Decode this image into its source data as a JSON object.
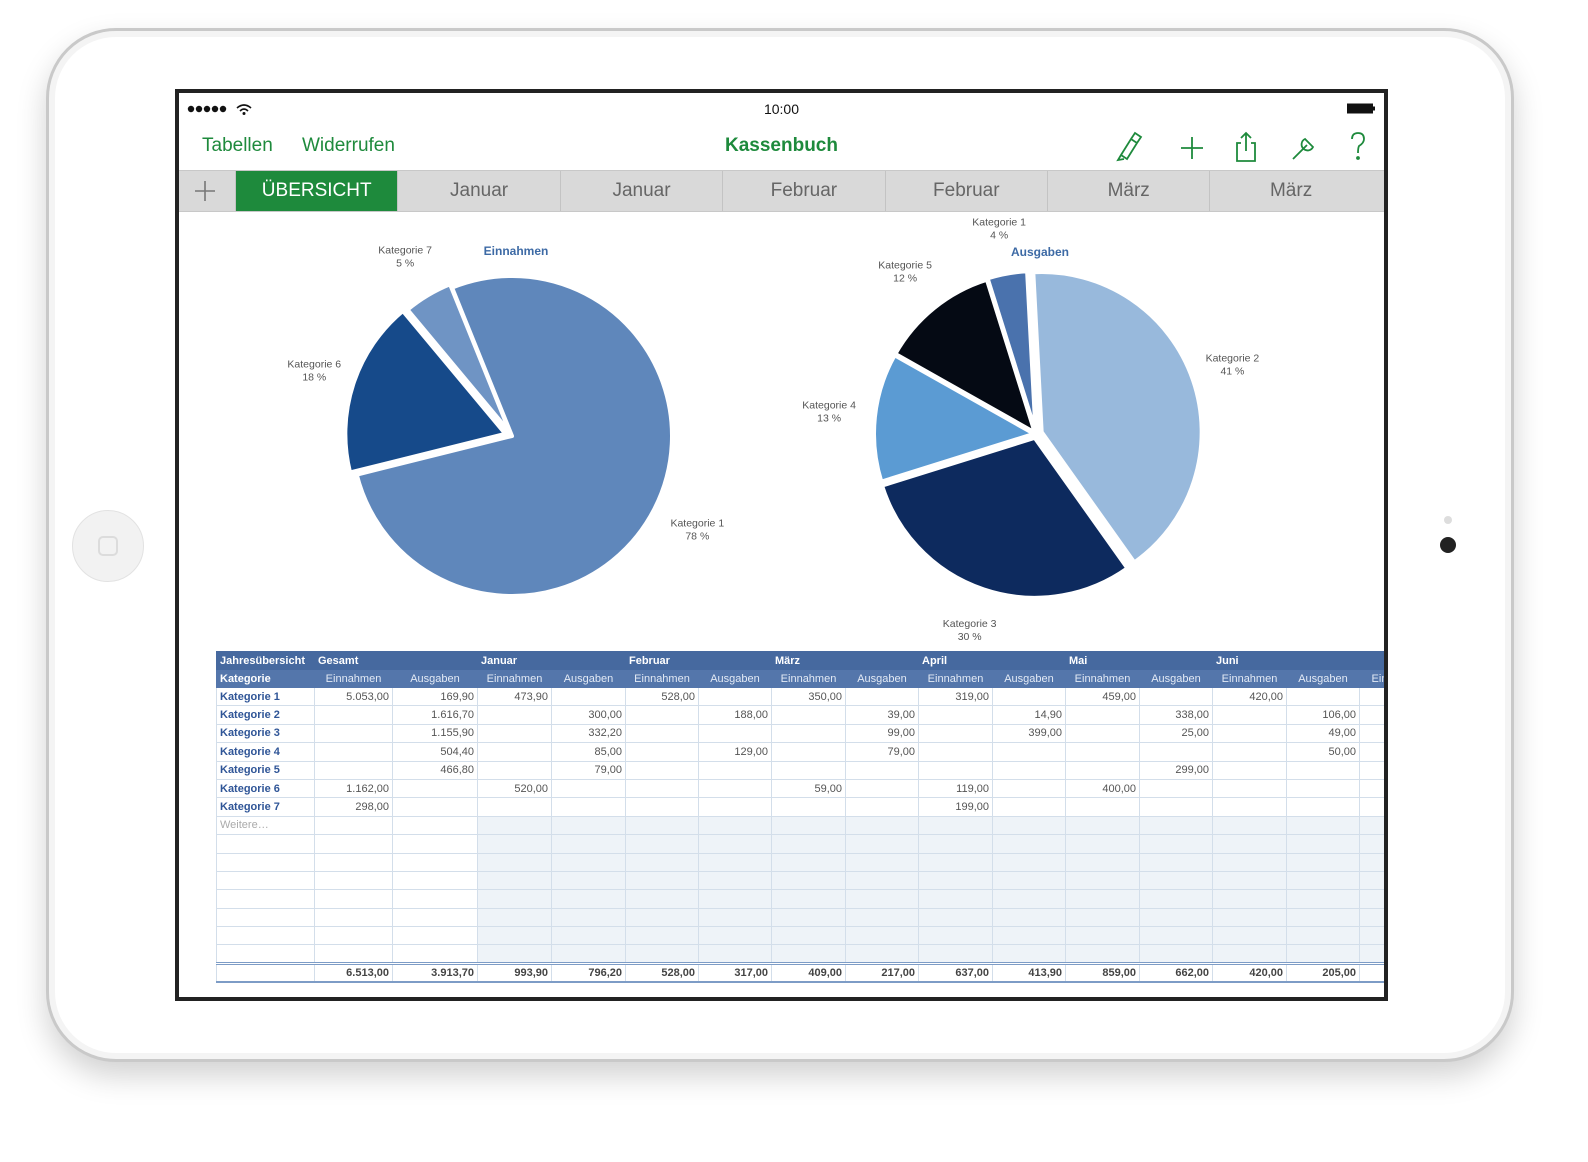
{
  "status_bar": {
    "time": "10:00"
  },
  "toolbar": {
    "left": [
      "Tabellen",
      "Widerrufen"
    ],
    "title": "Kassenbuch"
  },
  "tabs": [
    "ÜBERSICHT",
    "Januar",
    "Januar",
    "Februar",
    "Februar",
    "März",
    "März"
  ],
  "chart_data": [
    {
      "type": "pie",
      "title": "Einnahmen",
      "categories": [
        "Kategorie 1",
        "Kategorie 6",
        "Kategorie 7"
      ],
      "values": [
        78,
        18,
        5
      ],
      "value_labels": [
        "78 %",
        "18 %",
        "5 %"
      ],
      "colors": [
        "#5f87bb",
        "#164a8a",
        "#6f94c4"
      ]
    },
    {
      "type": "pie",
      "title": "Ausgaben",
      "categories": [
        "Kategorie 2",
        "Kategorie 3",
        "Kategorie 4",
        "Kategorie 5",
        "Kategorie 1"
      ],
      "values": [
        41,
        30,
        13,
        12,
        4
      ],
      "value_labels": [
        "41 %",
        "30 %",
        "13 %",
        "12 %",
        "4 %"
      ],
      "colors": [
        "#98b9dc",
        "#0d2a5e",
        "#5b9bd3",
        "#050a14",
        "#4a72ad"
      ]
    }
  ],
  "table": {
    "header": [
      "Jahresübersicht",
      "Gesamt",
      null,
      "Januar",
      null,
      "Februar",
      null,
      "März",
      null,
      "April",
      null,
      "Mai",
      null,
      "Juni",
      null,
      null
    ],
    "subheader": [
      "Kategorie",
      "Einnahmen",
      "Ausgaben",
      "Einnahmen",
      "Ausgaben",
      "Einnahmen",
      "Ausgaben",
      "Einnahmen",
      "Ausgaben",
      "Einnahmen",
      "Ausgaben",
      "Einnahmen",
      "Ausgaben",
      "Einnahmen",
      "Ausgaben",
      "Ein"
    ],
    "rows": [
      [
        "Kategorie 1",
        "5.053,00",
        "169,90",
        "473,90",
        null,
        "528,00",
        null,
        "350,00",
        null,
        "319,00",
        null,
        "459,00",
        null,
        "420,00",
        null
      ],
      [
        "Kategorie 2",
        null,
        "1.616,70",
        null,
        "300,00",
        null,
        "188,00",
        null,
        "39,00",
        null,
        "14,90",
        null,
        "338,00",
        null,
        "106,00"
      ],
      [
        "Kategorie 3",
        null,
        "1.155,90",
        null,
        "332,20",
        null,
        null,
        null,
        "99,00",
        null,
        "399,00",
        null,
        "25,00",
        null,
        "49,00"
      ],
      [
        "Kategorie 4",
        null,
        "504,40",
        null,
        "85,00",
        null,
        "129,00",
        null,
        "79,00",
        null,
        null,
        null,
        null,
        null,
        "50,00"
      ],
      [
        "Kategorie 5",
        null,
        "466,80",
        null,
        "79,00",
        null,
        null,
        null,
        null,
        null,
        null,
        null,
        "299,00",
        null,
        null
      ],
      [
        "Kategorie 6",
        "1.162,00",
        null,
        "520,00",
        null,
        null,
        null,
        "59,00",
        null,
        "119,00",
        null,
        "400,00",
        null,
        null,
        null
      ],
      [
        "Kategorie 7",
        "298,00",
        null,
        null,
        null,
        null,
        null,
        null,
        null,
        "199,00",
        null,
        null,
        null,
        null,
        null
      ]
    ],
    "more": "Weitere…",
    "totals": [
      "6.513,00",
      "3.913,70",
      "993,90",
      "796,20",
      "528,00",
      "317,00",
      "409,00",
      "217,00",
      "637,00",
      "413,90",
      "859,00",
      "662,00",
      "420,00",
      "205,00"
    ]
  }
}
